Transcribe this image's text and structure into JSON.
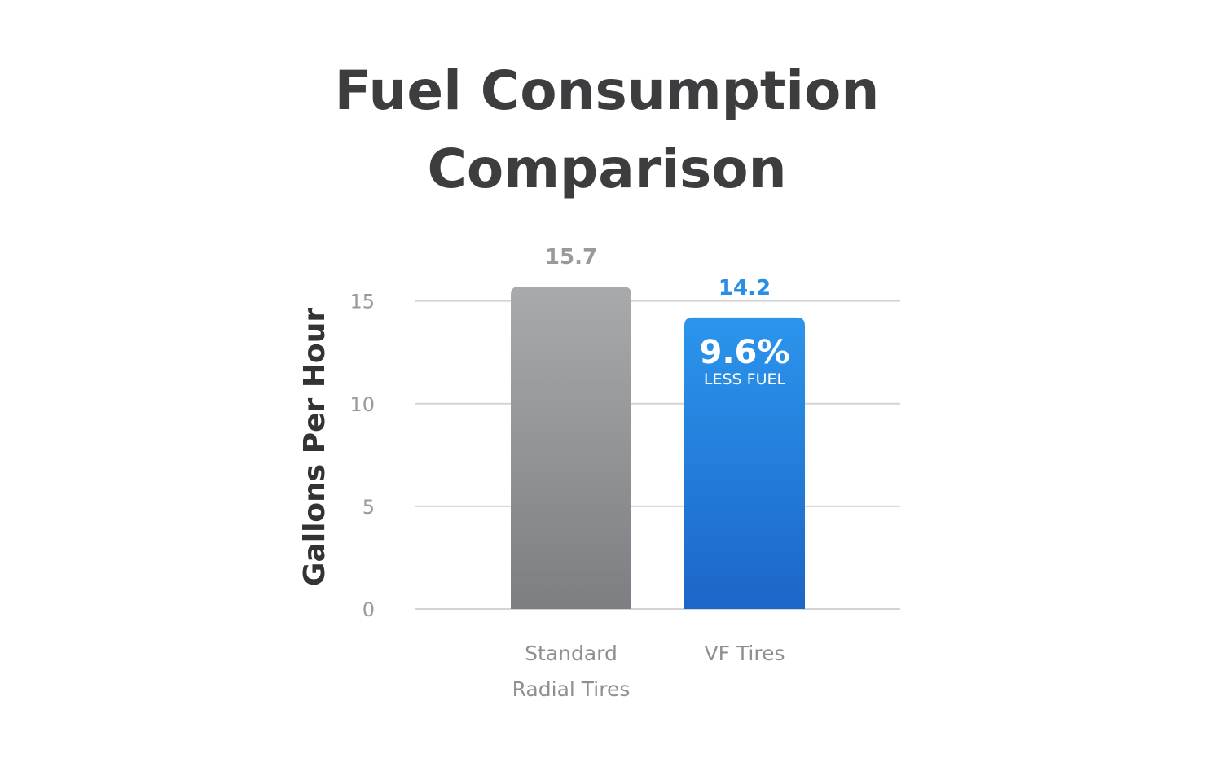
{
  "chart_data": {
    "type": "bar",
    "title": [
      "Fuel Consumption",
      "Comparison"
    ],
    "xlabel": "",
    "ylabel": "Gallons Per Hour",
    "ylim": [
      0,
      15.7
    ],
    "yticks": [
      0,
      5,
      10,
      15
    ],
    "grid": true,
    "categories": [
      [
        "Standard",
        "Radial Tires"
      ],
      [
        "VF Tires"
      ]
    ],
    "values": [
      15.7,
      14.2
    ],
    "value_labels": [
      "15.7",
      "14.2"
    ],
    "colors": {
      "standard_top": "#a9aaac",
      "standard_bottom": "#7d7e81",
      "vf_top": "#2b95ec",
      "vf_bottom": "#1c66c8",
      "standard_label": "#9a9a9c",
      "vf_label": "#2a8ee6"
    },
    "annotations": [
      {
        "category_index": 1,
        "main": "9.6%",
        "sub": "LESS FUEL"
      }
    ]
  }
}
